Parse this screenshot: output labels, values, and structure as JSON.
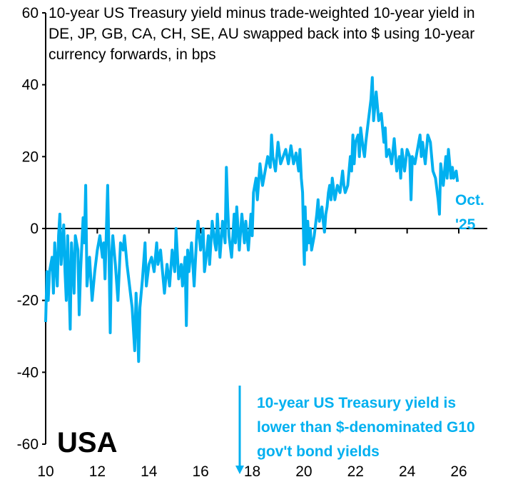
{
  "chart_data": {
    "type": "line",
    "title": "10-year US Treasury yield minus trade-weighted 10-year yield in DE, JP, GB, CA, CH, SE, AU swapped back into $ using 10-year currency forwards, in bps",
    "label": "USA",
    "annotation": "10-year US Treasury yield is lower than $-denominated G10 gov't bond yields",
    "end_label": [
      "Oct.",
      "'25"
    ],
    "xlim": [
      2010,
      2026
    ],
    "ylim": [
      -60,
      60
    ],
    "x_ticks": [
      2010,
      2012,
      2014,
      2016,
      2018,
      2020,
      2022,
      2024,
      2026
    ],
    "x_tick_labels": [
      "10",
      "12",
      "14",
      "16",
      "18",
      "20",
      "22",
      "24",
      "26"
    ],
    "y_ticks": [
      60,
      40,
      20,
      0,
      -20,
      -40,
      -60
    ],
    "y_tick_labels": [
      "60",
      "40",
      "20",
      "0",
      "-20",
      "-40",
      "-60"
    ],
    "grid": false,
    "color": "#00b0f0",
    "series": [
      {
        "x": [
          2010.0,
          2010.05,
          2010.1,
          2010.15,
          2010.25,
          2010.3,
          2010.35,
          2010.45,
          2010.5,
          2010.55,
          2010.6,
          2010.7,
          2010.75,
          2010.8,
          2010.85,
          2010.95,
          2011.0,
          2011.05,
          2011.1,
          2011.15,
          2011.25,
          2011.3,
          2011.35,
          2011.45,
          2011.5,
          2011.55,
          2011.6,
          2011.7,
          2011.8,
          2011.9,
          2012.0,
          2012.1,
          2012.2,
          2012.25,
          2012.3,
          2012.4,
          2012.45,
          2012.5,
          2012.55,
          2012.6,
          2012.7,
          2012.8,
          2012.9,
          2013.0,
          2013.05,
          2013.15,
          2013.25,
          2013.35,
          2013.45,
          2013.5,
          2013.55,
          2013.6,
          2013.65,
          2013.75,
          2013.85,
          2013.9,
          2014.0,
          2014.1,
          2014.2,
          2014.3,
          2014.35,
          2014.45,
          2014.55,
          2014.6,
          2014.7,
          2014.8,
          2014.9,
          2015.0,
          2015.05,
          2015.15,
          2015.25,
          2015.3,
          2015.4,
          2015.45,
          2015.5,
          2015.55,
          2015.65,
          2015.75,
          2015.85,
          2015.9,
          2016.0,
          2016.1,
          2016.15,
          2016.25,
          2016.3,
          2016.35,
          2016.45,
          2016.55,
          2016.6,
          2016.65,
          2016.75,
          2016.85,
          2016.95,
          2017.0,
          2017.05,
          2017.1,
          2017.2,
          2017.3,
          2017.35,
          2017.4,
          2017.5,
          2017.6,
          2017.7,
          2017.75,
          2017.85,
          2017.95,
          2018.0,
          2018.05,
          2018.15,
          2018.2,
          2018.3,
          2018.4,
          2018.5,
          2018.6,
          2018.7,
          2018.75,
          2018.8,
          2018.9,
          2019.0,
          2019.1,
          2019.2,
          2019.3,
          2019.4,
          2019.5,
          2019.6,
          2019.7,
          2019.8,
          2019.85,
          2019.9,
          2019.95,
          2020.0,
          2020.02,
          2020.05,
          2020.1,
          2020.15,
          2020.2,
          2020.25,
          2020.3,
          2020.4,
          2020.5,
          2020.55,
          2020.6,
          2020.7,
          2020.75,
          2020.8,
          2020.85,
          2020.9,
          2020.95,
          2021.0,
          2021.05,
          2021.1,
          2021.2,
          2021.3,
          2021.4,
          2021.5,
          2021.55,
          2021.6,
          2021.7,
          2021.8,
          2021.85,
          2021.9,
          2021.95,
          2022.0,
          2022.1,
          2022.15,
          2022.2,
          2022.3,
          2022.35,
          2022.4,
          2022.5,
          2022.6,
          2022.65,
          2022.7,
          2022.8,
          2022.9,
          2023.0,
          2023.1,
          2023.15,
          2023.2,
          2023.3,
          2023.4,
          2023.5,
          2023.6,
          2023.7,
          2023.75,
          2023.8,
          2023.9,
          2024.0,
          2024.1,
          2024.15,
          2024.2,
          2024.3,
          2024.4,
          2024.5,
          2024.55,
          2024.6,
          2024.7,
          2024.8,
          2024.9,
          2024.95,
          2025.0,
          2025.1,
          2025.2,
          2025.25,
          2025.3,
          2025.4,
          2025.5,
          2025.55,
          2025.6,
          2025.7,
          2025.75,
          2025.8,
          2025.9,
          2025.95
        ],
        "y": [
          -26,
          -12,
          -20,
          -12,
          -8,
          -18,
          -4,
          -16,
          -2,
          4,
          -10,
          1,
          -12,
          -20,
          -2,
          -28,
          -4,
          -10,
          -18,
          -2,
          -6,
          -24,
          -12,
          3,
          -4,
          12,
          -16,
          -8,
          -20,
          -12,
          -6,
          -2,
          -8,
          -4,
          -14,
          12,
          -6,
          -29,
          -8,
          -2,
          -10,
          -20,
          -4,
          -6,
          -2,
          -10,
          -16,
          -22,
          -34,
          -18,
          -26,
          -37,
          -22,
          -14,
          -4,
          -16,
          -10,
          -8,
          -12,
          -4,
          -10,
          -6,
          -14,
          -18,
          -10,
          -16,
          -6,
          -12,
          0,
          -14,
          -10,
          -16,
          -8,
          -27,
          -6,
          -12,
          -4,
          -16,
          -2,
          2,
          -6,
          0,
          -12,
          -6,
          -2,
          -10,
          2,
          -4,
          -6,
          4,
          -8,
          2,
          -4,
          17,
          6,
          -2,
          -8,
          4,
          -4,
          6,
          -6,
          4,
          -4,
          2,
          -6,
          4,
          -2,
          10,
          14,
          8,
          18,
          12,
          16,
          20,
          17,
          26,
          20,
          16,
          24,
          18,
          20,
          22,
          18,
          23,
          18,
          21,
          16,
          22,
          14,
          10,
          -6,
          -10,
          6,
          -6,
          2,
          -4,
          0,
          -6,
          -2,
          4,
          8,
          2,
          6,
          2,
          -1,
          4,
          6,
          10,
          12,
          8,
          14,
          8,
          12,
          10,
          16,
          12,
          10,
          12,
          20,
          16,
          26,
          18,
          24,
          26,
          20,
          28,
          22,
          20,
          24,
          30,
          36,
          42,
          30,
          38,
          30,
          32,
          24,
          28,
          20,
          22,
          18,
          25,
          16,
          20,
          14,
          22,
          16,
          22,
          20,
          8,
          20,
          18,
          22,
          26,
          20,
          24,
          18,
          26,
          24,
          20,
          16,
          14,
          8,
          4,
          18,
          12,
          20,
          14,
          22,
          14,
          17,
          14,
          16,
          13
        ]
      }
    ]
  }
}
